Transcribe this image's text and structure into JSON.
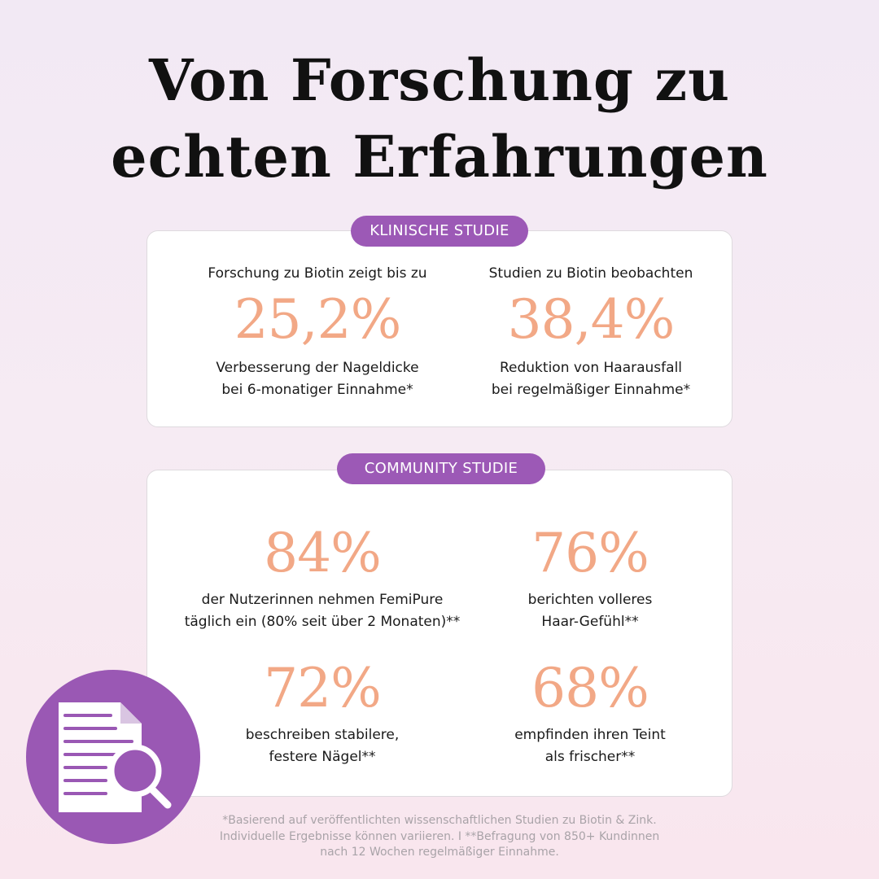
{
  "title": {
    "line1": "Von Forschung zu",
    "line2": "echten Erfahrungen"
  },
  "clinical": {
    "label": "KLINISCHE STUDIE",
    "stats": [
      {
        "lead": "Forschung zu Biotin zeigt bis zu",
        "value": "25,2%",
        "desc_line1": "Verbesserung der Nageldicke",
        "desc_line2": "bei 6-monatiger Einnahme*"
      },
      {
        "lead": "Studien zu Biotin beobachten",
        "value": "38,4%",
        "desc_line1": "Reduktion von Haarausfall",
        "desc_line2": "bei regelmäßiger Einnahme*"
      }
    ]
  },
  "community": {
    "label": "COMMUNITY STUDIE",
    "stats": [
      {
        "value": "84%",
        "desc_line1": "der Nutzerinnen nehmen FemiPure",
        "desc_line2": "täglich ein (80% seit über 2 Monaten)**"
      },
      {
        "value": "76%",
        "desc_line1": "berichten volleres",
        "desc_line2": "Haar-Gefühl**"
      },
      {
        "value": "72%",
        "desc_line1": "beschreiben stabilere,",
        "desc_line2": "festere Nägel**"
      },
      {
        "value": "68%",
        "desc_line1": "empfinden ihren Teint",
        "desc_line2": "als frischer**"
      }
    ]
  },
  "footnote": {
    "line1": "*Basierend auf veröffentlichten wissenschaftlichen Studien zu Biotin & Zink.",
    "line2": "Individuelle Ergebnisse können variieren. I **Befragung von 850+ Kundinnen",
    "line3": "nach 12 Wochen regelmäßiger Einnahme."
  },
  "icon": "document-search-icon",
  "colors": {
    "accent_purple": "#9c59b6",
    "stat_peach": "#f2a886",
    "background_top": "#f2e9f4",
    "background_bottom": "#f9e6ee"
  }
}
